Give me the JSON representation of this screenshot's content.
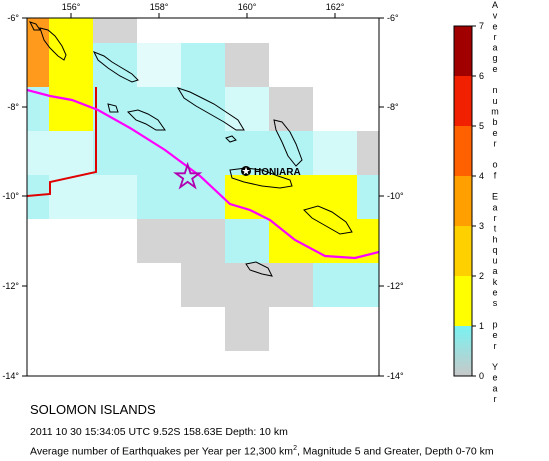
{
  "map": {
    "title": "SOLOMON ISLANDS",
    "event_line": "2011 10 30 15:34:05 UTC 9.52S 158.63E Depth: 10 km",
    "description": {
      "pre": "Average number of Earthquakes per Year per 12,300 km",
      "sup": "2",
      "post": ", Magnitude 5 and Greater, Depth 0-70 km"
    },
    "city_label": "HONIARA",
    "lon_ticks": [
      "156°",
      "158°",
      "160°",
      "162°"
    ],
    "lat_ticks": [
      "-6°",
      "-8°",
      "-10°",
      "-12°",
      "-14°"
    ],
    "epicenter": {
      "lat": -9.52,
      "lon": 158.63
    },
    "extent": {
      "lon_min": 155,
      "lon_max": 163,
      "lat_min": -14,
      "lat_max": -6
    }
  },
  "legend": {
    "title": "Average number of Earthquakes per Year",
    "ticks": [
      "0",
      "1",
      "2",
      "3",
      "4",
      "5",
      "6",
      "7"
    ],
    "bins": [
      {
        "from": 0,
        "to": 1,
        "color": "#cfcfcf"
      },
      {
        "from": 1,
        "to": 2,
        "color": "#ffff00"
      },
      {
        "from": 2,
        "to": 3,
        "color": "#ffd000"
      },
      {
        "from": 3,
        "to": 4,
        "color": "#ffa000"
      },
      {
        "from": 4,
        "to": 5,
        "color": "#ff6000"
      },
      {
        "from": 5,
        "to": 6,
        "color": "#f02000"
      },
      {
        "from": 6,
        "to": 7,
        "color": "#a00000"
      }
    ]
  },
  "colors": {
    "grid_gray": "#d4d4d4",
    "grid_light_gray": "#e6e6e6",
    "grid_cyan": "#b2f4f4",
    "grid_light_cyan": "#d4f9f9",
    "grid_very_light_cyan": "#e4fbfb",
    "grid_yellow": "#ffff00",
    "grid_orange": "#ff9a1c",
    "trench": "#ff00ff",
    "boundary": "#e00000",
    "coast": "#000000",
    "epicenter_star": "#b000b0"
  }
}
